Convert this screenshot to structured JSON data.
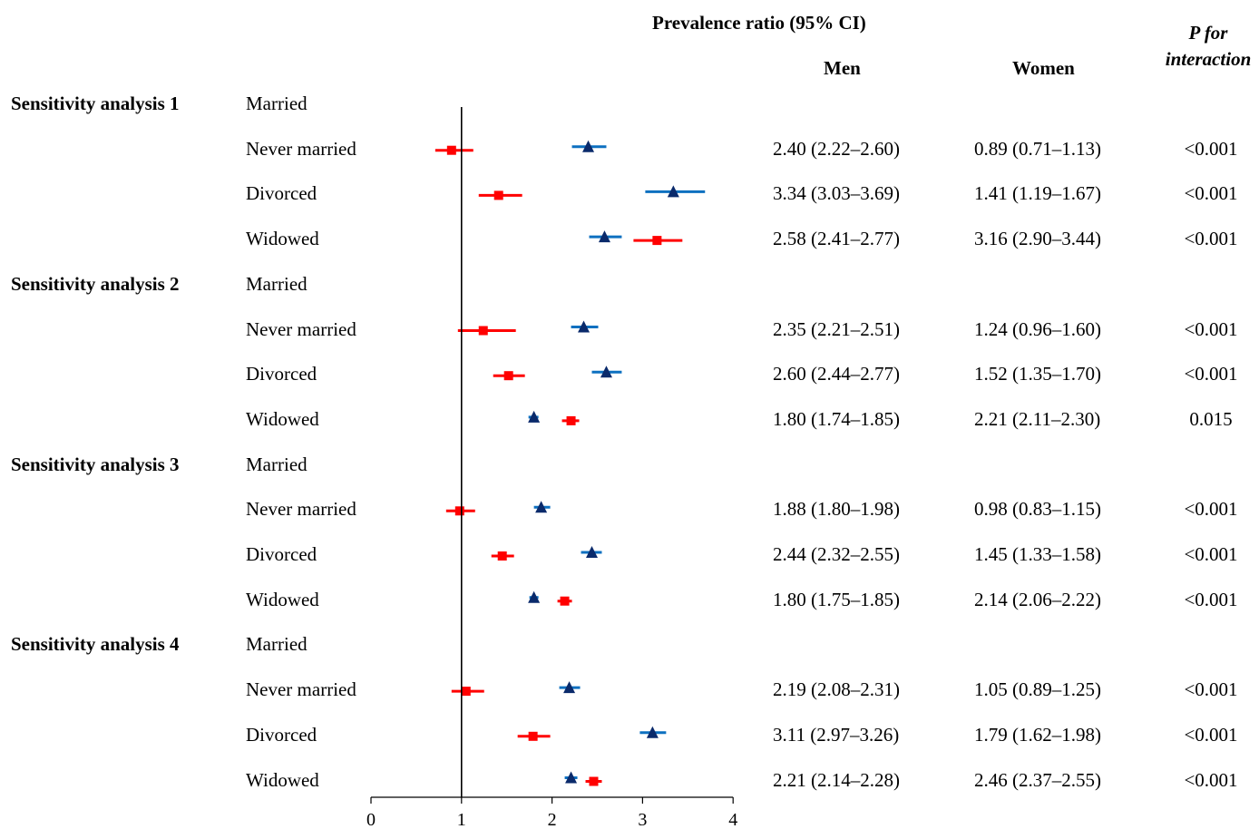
{
  "header": {
    "title": "Prevalence ratio (95% CI)",
    "men": "Men",
    "women": "Women",
    "p_line1": "P for",
    "p_line2": "interaction"
  },
  "chart_data": {
    "type": "forest",
    "x_ticks": [
      0,
      1,
      2,
      3,
      4
    ],
    "xlim": [
      0,
      4
    ],
    "reference_line": 1,
    "series": [
      {
        "name": "Men",
        "color": "#0d70c0",
        "marker_color": "#0a2a6b",
        "marker": "triangle"
      },
      {
        "name": "Women",
        "color": "#ff0000",
        "marker_color": "#ff0000",
        "marker": "square"
      }
    ],
    "sections": [
      {
        "name": "Sensitivity analysis 1",
        "reference": "Married",
        "rows": [
          {
            "label": "Never married",
            "men": [
              2.4,
              2.22,
              2.6
            ],
            "women": [
              0.89,
              0.71,
              1.13
            ],
            "men_text": "2.40 (2.22–2.60)",
            "women_text": "0.89 (0.71–1.13)",
            "p": "<0.001"
          },
          {
            "label": "Divorced",
            "men": [
              3.34,
              3.03,
              3.69
            ],
            "women": [
              1.41,
              1.19,
              1.67
            ],
            "men_text": "3.34 (3.03–3.69)",
            "women_text": "1.41 (1.19–1.67)",
            "p": "<0.001"
          },
          {
            "label": "Widowed",
            "men": [
              2.58,
              2.41,
              2.77
            ],
            "women": [
              3.16,
              2.9,
              3.44
            ],
            "men_text": "2.58 (2.41–2.77)",
            "women_text": "3.16 (2.90–3.44)",
            "p": "<0.001"
          }
        ]
      },
      {
        "name": "Sensitivity analysis 2",
        "reference": "Married",
        "rows": [
          {
            "label": "Never married",
            "men": [
              2.35,
              2.21,
              2.51
            ],
            "women": [
              1.24,
              0.96,
              1.6
            ],
            "men_text": "2.35 (2.21–2.51)",
            "women_text": "1.24 (0.96–1.60)",
            "p": "<0.001"
          },
          {
            "label": "Divorced",
            "men": [
              2.6,
              2.44,
              2.77
            ],
            "women": [
              1.52,
              1.35,
              1.7
            ],
            "men_text": "2.60 (2.44–2.77)",
            "women_text": "1.52 (1.35–1.70)",
            "p": "<0.001"
          },
          {
            "label": "Widowed",
            "men": [
              1.8,
              1.74,
              1.85
            ],
            "women": [
              2.21,
              2.11,
              2.3
            ],
            "men_text": "1.80 (1.74–1.85)",
            "women_text": "2.21 (2.11–2.30)",
            "p": "0.015"
          }
        ]
      },
      {
        "name": "Sensitivity analysis 3",
        "reference": "Married",
        "rows": [
          {
            "label": "Never married",
            "men": [
              1.88,
              1.8,
              1.98
            ],
            "women": [
              0.98,
              0.83,
              1.15
            ],
            "men_text": "1.88 (1.80–1.98)",
            "women_text": "0.98 (0.83–1.15)",
            "p": "<0.001"
          },
          {
            "label": "Divorced",
            "men": [
              2.44,
              2.32,
              2.55
            ],
            "women": [
              1.45,
              1.33,
              1.58
            ],
            "men_text": "2.44 (2.32–2.55)",
            "women_text": "1.45 (1.33–1.58)",
            "p": "<0.001"
          },
          {
            "label": "Widowed",
            "men": [
              1.8,
              1.75,
              1.85
            ],
            "women": [
              2.14,
              2.06,
              2.22
            ],
            "men_text": "1.80 (1.75–1.85)",
            "women_text": "2.14 (2.06–2.22)",
            "p": "<0.001"
          }
        ]
      },
      {
        "name": "Sensitivity analysis 4",
        "reference": "Married",
        "rows": [
          {
            "label": "Never married",
            "men": [
              2.19,
              2.08,
              2.31
            ],
            "women": [
              1.05,
              0.89,
              1.25
            ],
            "men_text": "2.19 (2.08–2.31)",
            "women_text": "1.05 (0.89–1.25)",
            "p": "<0.001"
          },
          {
            "label": "Divorced",
            "men": [
              3.11,
              2.97,
              3.26
            ],
            "women": [
              1.79,
              1.62,
              1.98
            ],
            "men_text": "3.11 (2.97–3.26)",
            "women_text": "1.79 (1.62–1.98)",
            "p": "<0.001"
          },
          {
            "label": "Widowed",
            "men": [
              2.21,
              2.14,
              2.28
            ],
            "women": [
              2.46,
              2.37,
              2.55
            ],
            "men_text": "2.21 (2.14–2.28)",
            "women_text": "2.46 (2.37–2.55)",
            "p": "<0.001"
          }
        ]
      }
    ]
  }
}
